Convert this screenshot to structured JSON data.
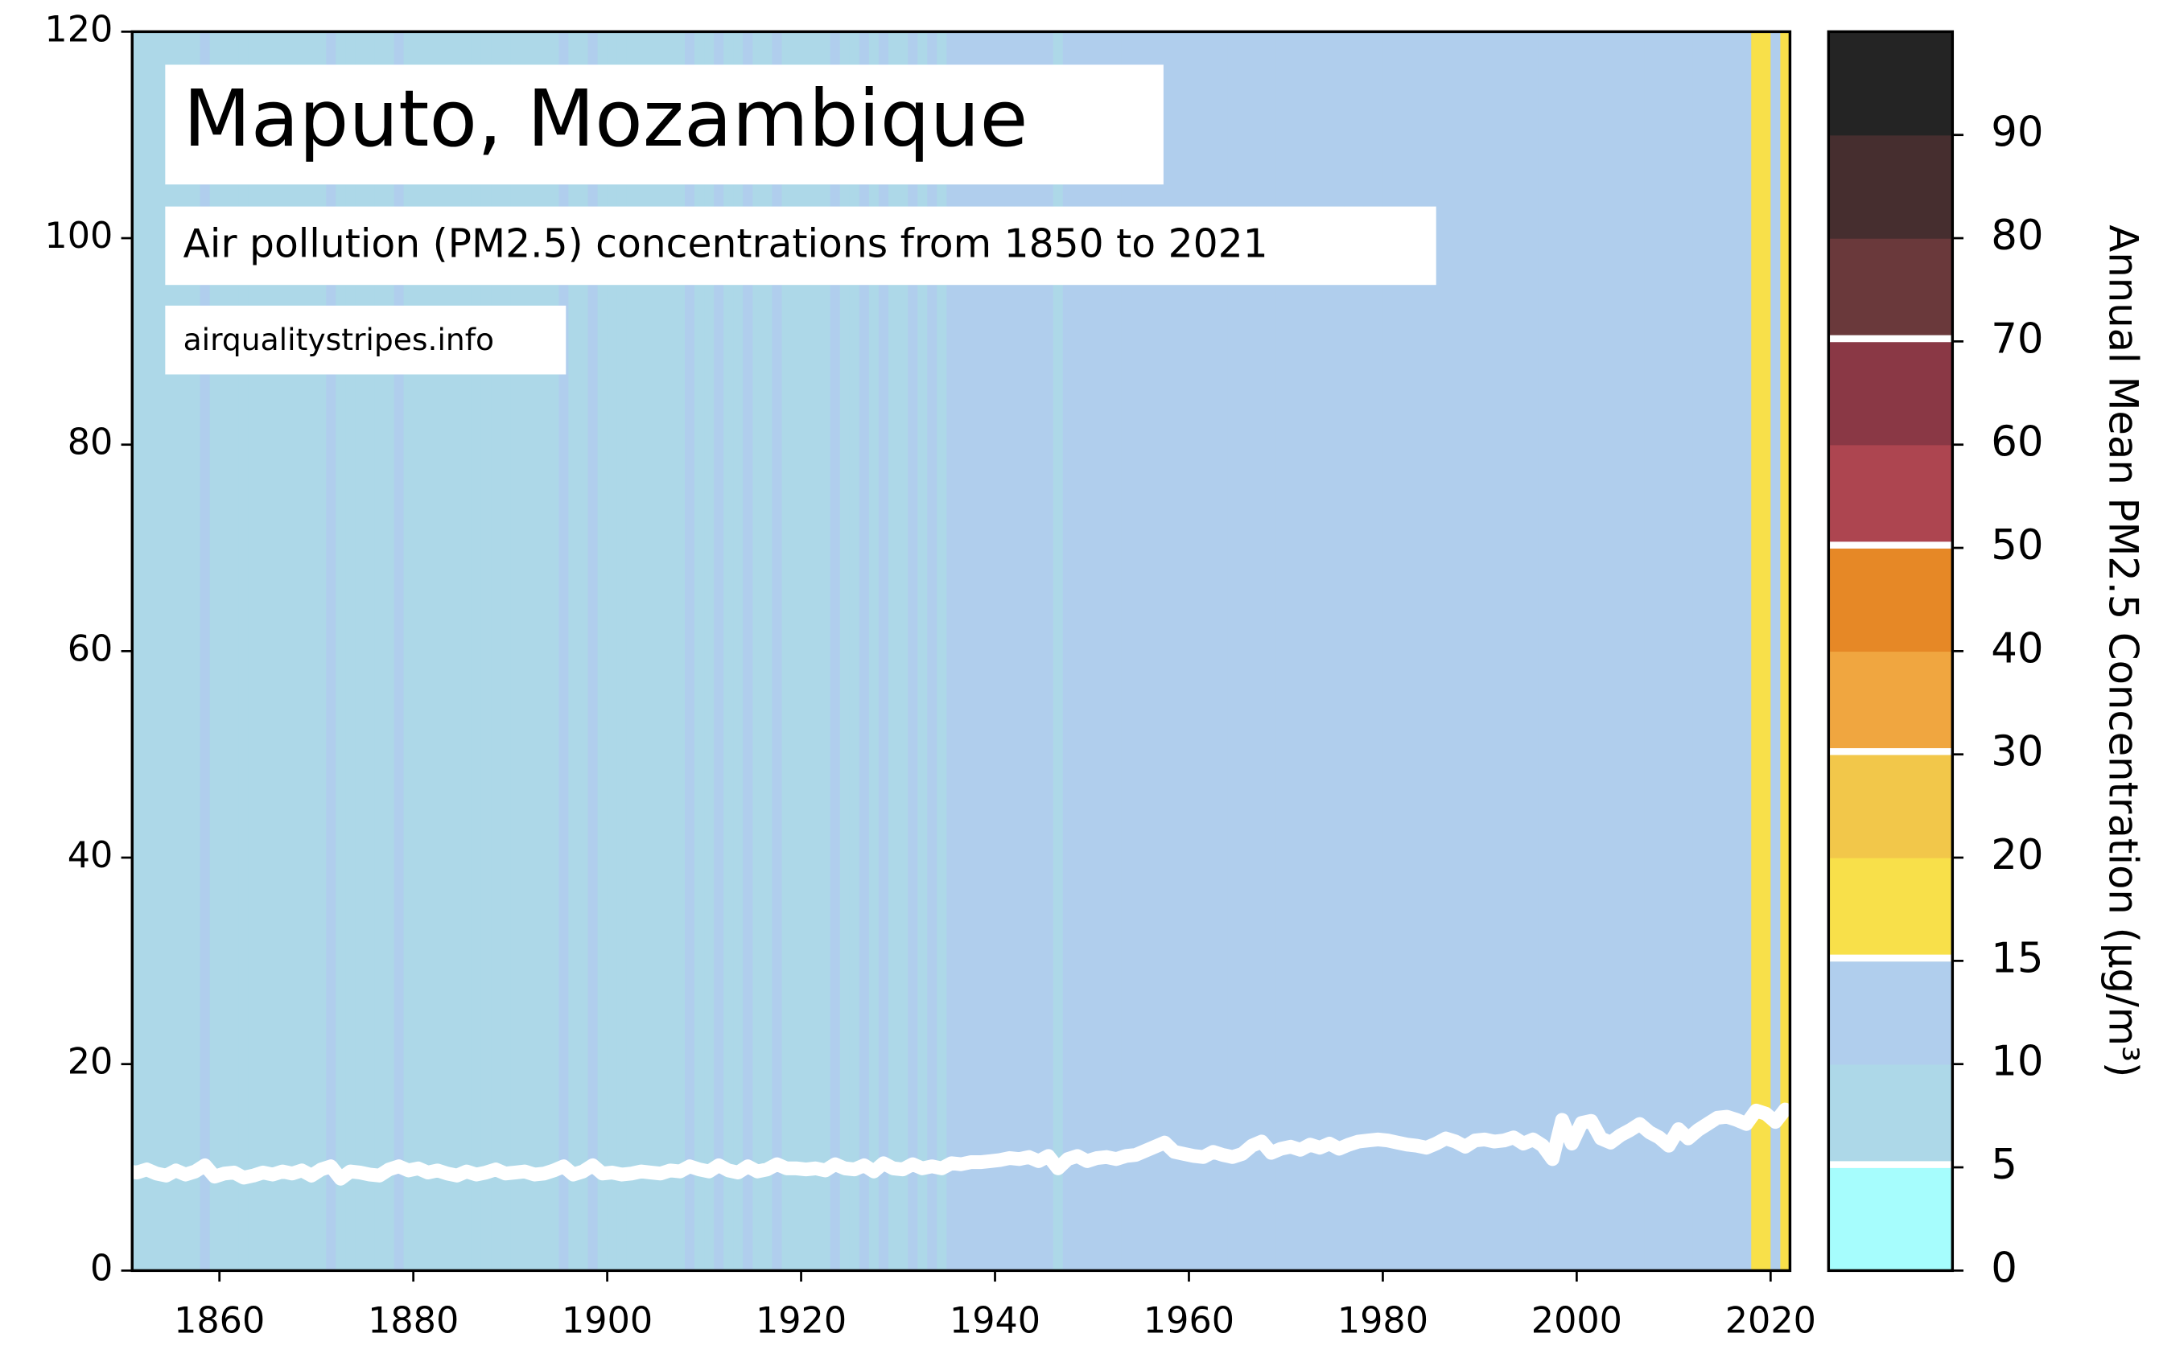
{
  "chart_data": {
    "type": "stripes",
    "title": "Maputo, Mozambique",
    "subtitle": "Air pollution (PM2.5) concentrations from 1850 to 2021",
    "source": "airqualitystripes.info",
    "line_color": "#ffffff",
    "xlim": [
      1851,
      2022
    ],
    "xticks": [
      1860,
      1880,
      1900,
      1920,
      1940,
      1960,
      1980,
      2000,
      2020
    ],
    "ylim": [
      0,
      120
    ],
    "yticks": [
      0,
      20,
      40,
      60,
      80,
      100,
      120
    ],
    "x": [
      1850,
      1851,
      1852,
      1853,
      1854,
      1855,
      1856,
      1857,
      1858,
      1859,
      1860,
      1861,
      1862,
      1863,
      1864,
      1865,
      1866,
      1867,
      1868,
      1869,
      1870,
      1871,
      1872,
      1873,
      1874,
      1875,
      1876,
      1877,
      1878,
      1879,
      1880,
      1881,
      1882,
      1883,
      1884,
      1885,
      1886,
      1887,
      1888,
      1889,
      1890,
      1891,
      1892,
      1893,
      1894,
      1895,
      1896,
      1897,
      1898,
      1899,
      1900,
      1901,
      1902,
      1903,
      1904,
      1905,
      1906,
      1907,
      1908,
      1909,
      1910,
      1911,
      1912,
      1913,
      1914,
      1915,
      1916,
      1917,
      1918,
      1919,
      1920,
      1921,
      1922,
      1923,
      1924,
      1925,
      1926,
      1927,
      1928,
      1929,
      1930,
      1931,
      1932,
      1933,
      1934,
      1935,
      1936,
      1937,
      1938,
      1939,
      1940,
      1941,
      1942,
      1943,
      1944,
      1945,
      1946,
      1947,
      1948,
      1949,
      1950,
      1951,
      1952,
      1953,
      1954,
      1955,
      1956,
      1957,
      1958,
      1959,
      1960,
      1961,
      1962,
      1963,
      1964,
      1965,
      1966,
      1967,
      1968,
      1969,
      1970,
      1971,
      1972,
      1973,
      1974,
      1975,
      1976,
      1977,
      1978,
      1979,
      1980,
      1981,
      1982,
      1983,
      1984,
      1985,
      1986,
      1987,
      1988,
      1989,
      1990,
      1991,
      1992,
      1993,
      1994,
      1995,
      1996,
      1997,
      1998,
      1999,
      2000,
      2001,
      2002,
      2003,
      2004,
      2005,
      2006,
      2007,
      2008,
      2009,
      2010,
      2011,
      2012,
      2013,
      2014,
      2015,
      2016,
      2017,
      2018,
      2019,
      2020,
      2021
    ],
    "values": [
      9.6,
      9.5,
      9.8,
      9.4,
      9.2,
      9.7,
      9.3,
      9.6,
      10.2,
      9.1,
      9.4,
      9.5,
      9.0,
      9.2,
      9.5,
      9.3,
      9.6,
      9.4,
      9.7,
      9.2,
      9.8,
      10.1,
      8.9,
      9.6,
      9.5,
      9.3,
      9.2,
      9.8,
      10.1,
      9.7,
      9.9,
      9.5,
      9.7,
      9.4,
      9.2,
      9.6,
      9.3,
      9.5,
      9.8,
      9.4,
      9.5,
      9.6,
      9.3,
      9.4,
      9.7,
      10.1,
      9.3,
      9.6,
      10.2,
      9.4,
      9.5,
      9.3,
      9.4,
      9.6,
      9.5,
      9.4,
      9.7,
      9.6,
      10.1,
      9.8,
      9.6,
      10.2,
      9.7,
      9.5,
      10.1,
      9.6,
      9.8,
      10.3,
      9.9,
      9.9,
      9.8,
      9.9,
      9.7,
      10.3,
      9.9,
      9.8,
      10.2,
      9.6,
      10.4,
      9.9,
      9.8,
      10.3,
      9.9,
      10.1,
      9.9,
      10.4,
      10.3,
      10.5,
      10.5,
      10.6,
      10.7,
      10.9,
      10.8,
      11.0,
      10.6,
      11.1,
      9.9,
      10.8,
      11.1,
      10.6,
      10.9,
      11.0,
      10.8,
      11.1,
      11.2,
      11.6,
      12.0,
      12.4,
      11.5,
      11.3,
      11.1,
      11.0,
      11.5,
      11.2,
      11.0,
      11.3,
      12.1,
      12.5,
      11.4,
      11.8,
      12.0,
      11.7,
      12.2,
      11.9,
      12.3,
      11.8,
      12.2,
      12.5,
      12.6,
      12.7,
      12.6,
      12.4,
      12.2,
      12.1,
      11.9,
      12.3,
      12.8,
      12.5,
      12.0,
      12.6,
      12.7,
      12.5,
      12.6,
      12.9,
      12.3,
      12.7,
      12.1,
      10.8,
      14.6,
      12.3,
      14.3,
      14.5,
      12.8,
      12.4,
      13.1,
      13.6,
      14.2,
      13.4,
      12.9,
      12.1,
      13.7,
      12.8,
      13.6,
      14.2,
      14.8,
      14.9,
      14.6,
      14.2,
      15.5,
      15.2,
      14.4,
      15.6
    ],
    "colorbar": {
      "label": "Annual Mean PM2.5 Concentration (µg/m³)",
      "bounds": [
        0,
        5,
        10,
        15,
        20,
        30,
        40,
        50,
        60,
        70,
        80,
        90,
        100
      ],
      "colors": [
        "#a6fdfd",
        "#add8e8",
        "#b0ceed",
        "#f8e04a",
        "#f2c74a",
        "#f0a640",
        "#e68826",
        "#ad4550",
        "#8a3845",
        "#6a393b",
        "#462e2f",
        "#242424"
      ],
      "ticks": [
        0,
        5,
        10,
        15,
        20,
        30,
        40,
        50,
        60,
        70,
        80,
        90
      ],
      "guidelines": [
        5,
        15,
        30,
        50,
        70
      ]
    }
  }
}
